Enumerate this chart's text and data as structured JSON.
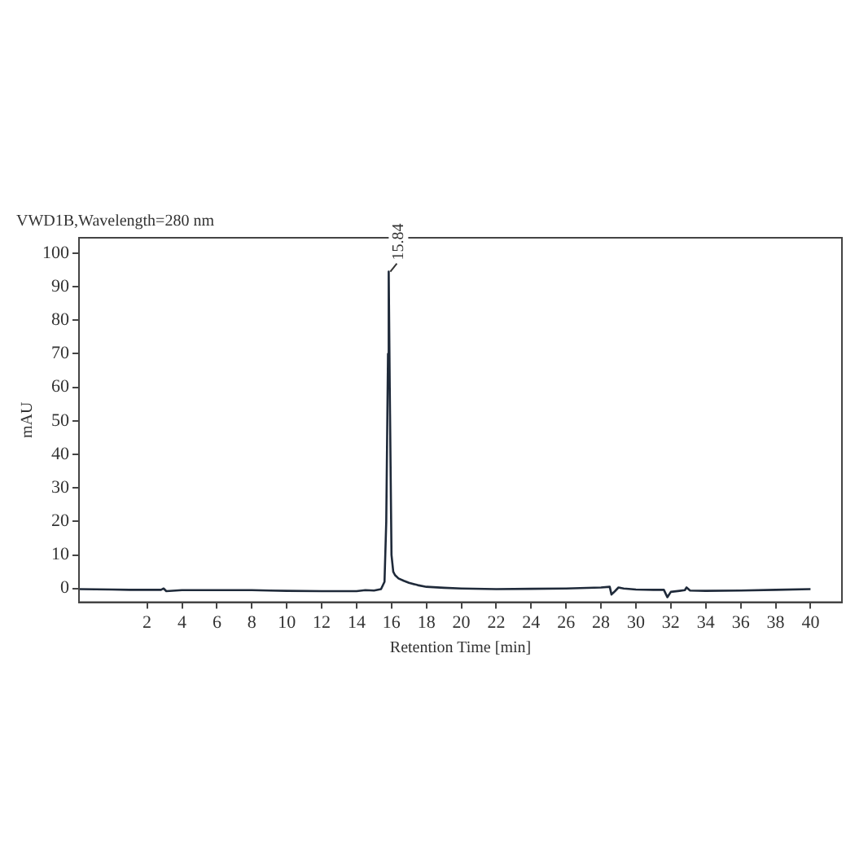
{
  "chart_data": {
    "type": "line",
    "title": "VWD1B,Wavelength=280 nm",
    "xlabel": "Retention Time [min]",
    "ylabel": "mAU",
    "series": [
      {
        "color": "#1f2a3a",
        "x": [
          -1.9,
          0,
          1,
          2,
          2.8,
          2.95,
          3.1,
          4,
          6,
          8,
          9,
          10,
          12,
          14,
          14.5,
          15,
          15.4,
          15.6,
          15.7,
          15.8,
          15.84,
          15.9,
          16,
          16.1,
          16.2,
          16.4,
          16.7,
          17,
          17.5,
          18,
          19,
          20,
          22,
          24,
          26,
          28,
          28.5,
          28.6,
          28.8,
          29,
          29.3,
          30,
          31,
          31.6,
          31.8,
          32,
          32.5,
          32.8,
          32.9,
          33.1,
          34,
          36,
          38,
          40
        ],
        "values": [
          -0.2,
          -0.3,
          -0.4,
          -0.4,
          -0.4,
          0,
          -0.8,
          -0.5,
          -0.5,
          -0.5,
          -0.6,
          -0.7,
          -0.8,
          -0.8,
          -0.5,
          -0.6,
          -0.2,
          2,
          20,
          70,
          94.5,
          60,
          10,
          5,
          4,
          3,
          2.3,
          1.7,
          1,
          0.5,
          0.2,
          0,
          -0.2,
          -0.1,
          0,
          0.3,
          0.5,
          -1.8,
          -0.8,
          0.3,
          0,
          -0.3,
          -0.4,
          -0.4,
          -2.6,
          -1,
          -0.7,
          -0.5,
          0.3,
          -0.6,
          -0.7,
          -0.6,
          -0.4,
          -0.2
        ]
      }
    ],
    "xlim": [
      -1.9,
      41.8
    ],
    "ylim": [
      -4.1,
      104.6
    ],
    "xticks": [
      2,
      4,
      6,
      8,
      10,
      12,
      14,
      16,
      18,
      20,
      22,
      24,
      26,
      28,
      30,
      32,
      34,
      36,
      38,
      40
    ],
    "yticks": [
      0,
      10,
      20,
      30,
      40,
      50,
      60,
      70,
      80,
      90,
      100
    ],
    "grid": false,
    "legend": false,
    "marker": "none",
    "line_style": "solid",
    "annotations": [
      {
        "text": "15.84",
        "x": 15.84,
        "y": 94.5
      }
    ]
  }
}
